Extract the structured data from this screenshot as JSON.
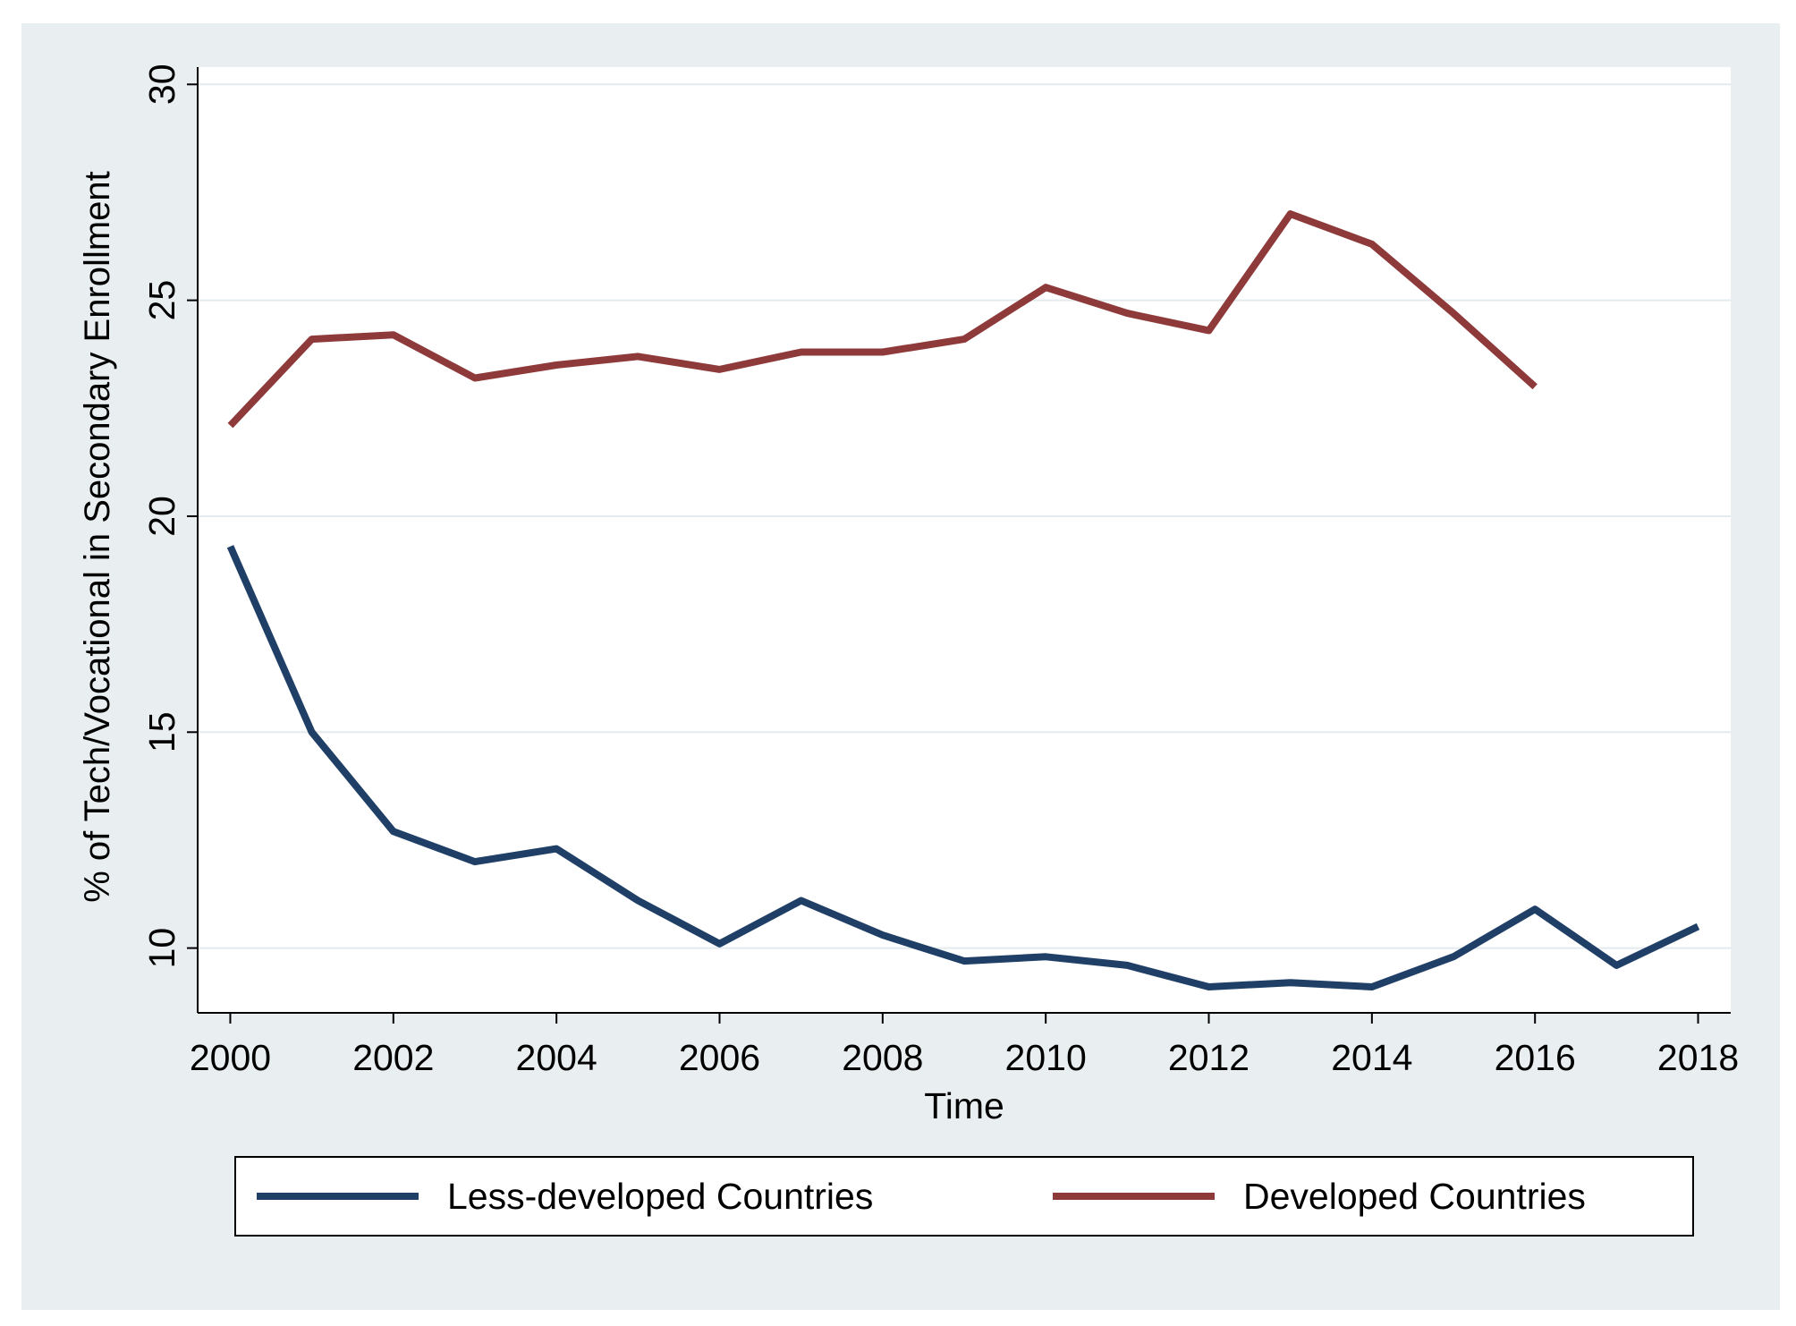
{
  "chart_data": {
    "type": "line",
    "title": "",
    "xlabel": "Time",
    "ylabel": "% of Tech/Vocational in Secondary Enrollment",
    "xlim": [
      1999.6,
      2018.4
    ],
    "ylim": [
      8.5,
      30.4
    ],
    "x_ticks": [
      2000,
      2002,
      2004,
      2006,
      2008,
      2010,
      2012,
      2014,
      2016,
      2018
    ],
    "y_ticks": [
      10,
      15,
      20,
      25,
      30
    ],
    "grid": true,
    "legend_position": "bottom",
    "series": [
      {
        "name": "Less-developed Countries",
        "color": "#1f3f66",
        "x": [
          2000,
          2001,
          2002,
          2003,
          2004,
          2005,
          2006,
          2007,
          2008,
          2009,
          2010,
          2011,
          2012,
          2013,
          2014,
          2015,
          2016,
          2017,
          2018
        ],
        "values": [
          19.3,
          15.0,
          12.7,
          12.0,
          12.3,
          11.1,
          10.1,
          11.1,
          10.3,
          9.7,
          9.8,
          9.6,
          9.1,
          9.2,
          9.1,
          9.8,
          10.9,
          9.6,
          10.5
        ]
      },
      {
        "name": "Developed Countries",
        "color": "#8f3a3a",
        "x": [
          2000,
          2001,
          2002,
          2003,
          2004,
          2005,
          2006,
          2007,
          2008,
          2009,
          2010,
          2011,
          2012,
          2013,
          2014,
          2015,
          2016
        ],
        "values": [
          22.1,
          24.1,
          24.2,
          23.2,
          23.5,
          23.7,
          23.4,
          23.8,
          23.8,
          24.1,
          25.3,
          24.7,
          24.3,
          27.0,
          26.3,
          24.7,
          23.0
        ]
      }
    ]
  },
  "colors": {
    "outer_background": "#e9eef1",
    "plot_background": "#ffffff",
    "grid": "#e3ebee"
  }
}
